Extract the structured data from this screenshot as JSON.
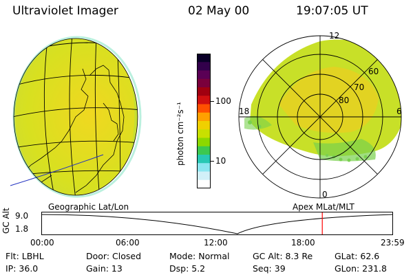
{
  "header": {
    "instrument": "Ultraviolet Imager",
    "date": "02 May 00",
    "time": "19:07:05 UT"
  },
  "colorbar": {
    "unit_label": "photon cm⁻²s⁻¹",
    "ticks": [
      "100",
      "10"
    ],
    "scale": "log",
    "colors": [
      "#0a0028",
      "#32004b",
      "#5a0055",
      "#7a003c",
      "#a00010",
      "#d01010",
      "#ff5000",
      "#ffa000",
      "#f0d000",
      "#c8e000",
      "#8cd800",
      "#3cc850",
      "#28c8b4",
      "#8ce6f0",
      "#d2f0f8",
      "#ffffff"
    ]
  },
  "polar_plot": {
    "mlt_labels": {
      "top": "12",
      "left": "18",
      "right": "6",
      "bottom": "0"
    },
    "lat_labels": [
      "60",
      "70",
      "80"
    ]
  },
  "timeline": {
    "axis_label": "GC Alt",
    "left_title": "Geographic Lat/Lon",
    "right_title": "Apex MLat/MLT",
    "y_ticks": [
      "9.0",
      "1.8"
    ],
    "x_ticks": [
      "00:00",
      "06:00",
      "12:00",
      "18:00",
      "23:59"
    ],
    "current_time_fraction": 0.8
  },
  "info": {
    "row1": {
      "flt": "Flt: LBHL",
      "door": "Door: Closed",
      "mode": "Mode: Normal",
      "gc_alt": "GC Alt: 8.3 Re",
      "glat": "GLat:  62.6"
    },
    "row2": {
      "ip": "IP: 36.0",
      "gain": "Gain: 13",
      "dsp": "Dsp:     5.2",
      "seq": "Seq: 39",
      "glon": "GLon: 231.8"
    }
  }
}
